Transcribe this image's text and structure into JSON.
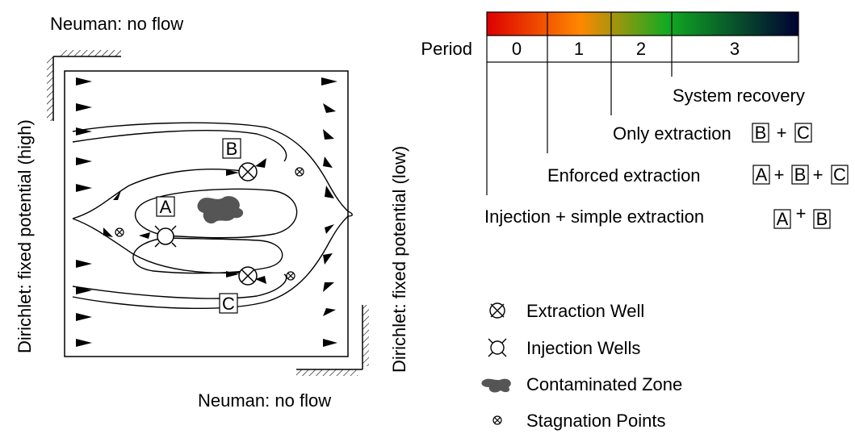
{
  "boundary": {
    "top": "Neuman: no flow",
    "bottom": "Neuman: no flow",
    "left": "Dirichlet: fixed potential (high)",
    "right": "Dirichlet: fixed potential (low)"
  },
  "wells": {
    "a": "A",
    "b": "B",
    "c": "C"
  },
  "timeline": {
    "header": "Period",
    "periods": [
      "0",
      "1",
      "2",
      "3"
    ],
    "colors": [
      "#dd0000",
      "#ff8800",
      "#11aa22",
      "#000033"
    ],
    "events": {
      "p3": "System recovery",
      "p2": "Only extraction",
      "p1": "Enforced extraction",
      "p0": "Injection + simple extraction"
    },
    "plus": "+"
  },
  "legend": {
    "extraction": "Extraction Well",
    "injection": "Injection Wells",
    "contaminated": "Contaminated Zone",
    "stagnation": "Stagnation Points"
  }
}
